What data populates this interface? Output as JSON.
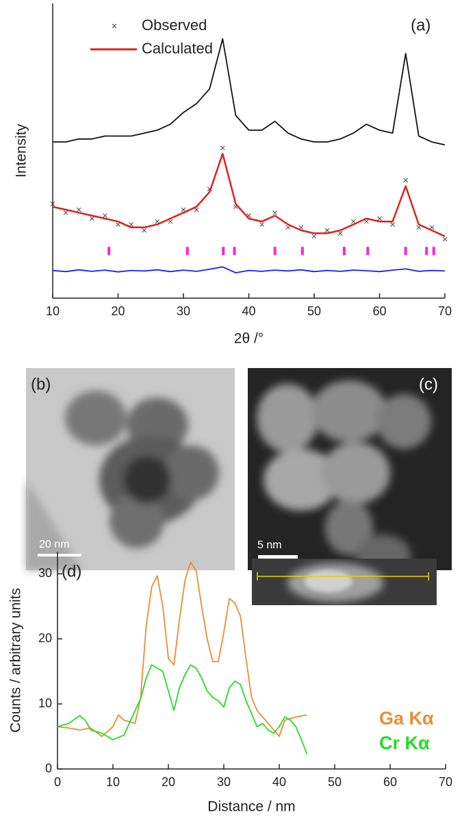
{
  "chart_data": [
    {
      "type": "line",
      "label": "(a)",
      "ylabel": "Intensity",
      "xlabel": "2θ /°",
      "xlim": [
        10,
        70
      ],
      "xticks": [
        10,
        20,
        30,
        40,
        50,
        60,
        70
      ],
      "ylim": [
        0,
        100
      ],
      "legend": {
        "position": "upper left",
        "style": "symbol"
      },
      "x": [
        10,
        12,
        14,
        16,
        18,
        20,
        22,
        24,
        26,
        28,
        30,
        32,
        34,
        36,
        38,
        40,
        42,
        44,
        46,
        48,
        50,
        52,
        54,
        56,
        58,
        60,
        62,
        64,
        66,
        68,
        70
      ],
      "series": [
        {
          "style": "line",
          "color": "#111111",
          "values": [
            53,
            53,
            54,
            54,
            55,
            55,
            55,
            56,
            57,
            59,
            63,
            66,
            71,
            88,
            62,
            57,
            57,
            60,
            56,
            54,
            53,
            53,
            54,
            56,
            59,
            57,
            56,
            83,
            55,
            53,
            52
          ]
        },
        {
          "name": "Observed",
          "style": "scatter",
          "color": "#444444",
          "values": [
            32,
            29,
            30,
            27,
            28,
            25,
            25,
            23,
            26,
            26,
            30,
            30,
            37,
            51,
            31,
            28,
            25,
            29,
            24,
            24,
            21,
            23,
            22,
            26,
            26,
            27,
            25,
            40,
            24,
            24,
            20
          ]
        },
        {
          "name": "Calculated",
          "style": "line",
          "color": "#e0201b",
          "values": [
            31,
            30,
            29,
            28,
            27,
            26,
            24,
            24,
            25,
            27,
            29,
            31,
            36,
            49,
            32,
            27,
            26,
            28,
            25,
            23,
            22,
            22,
            23,
            25,
            27,
            26,
            26,
            38,
            25,
            23,
            21
          ]
        },
        {
          "style": "line",
          "color": "#1a1aff",
          "values": [
            9.4,
            9.0,
            9.6,
            9.1,
            9.5,
            8.9,
            9.4,
            9.2,
            9.6,
            9.0,
            9.5,
            9.1,
            9.8,
            10.6,
            8.6,
            9.4,
            9.1,
            9.5,
            9.2,
            9.6,
            9.0,
            9.4,
            9.1,
            9.5,
            9.3,
            9.0,
            9.5,
            9.9,
            9.1,
            9.4,
            9.2
          ]
        },
        {
          "style": "ticks",
          "color": "#ff22dd",
          "x": [
            18.6,
            30.6,
            36.1,
            37.8,
            44.0,
            48.2,
            54.6,
            58.2,
            64.0,
            67.2,
            68.3
          ],
          "values": [
            16,
            16,
            16,
            16,
            16,
            16,
            16,
            16,
            16,
            16,
            16
          ]
        }
      ]
    },
    {
      "type": "line",
      "label": "(d)",
      "ylabel": "Counts / arbitrary units",
      "xlabel": "Distance / nm",
      "xlim": [
        0,
        70
      ],
      "xticks": [
        0,
        10,
        20,
        30,
        40,
        50,
        60,
        70
      ],
      "ylim": [
        0,
        33.4
      ],
      "yticks": [
        0,
        10,
        20,
        30
      ],
      "legend": {
        "position": "lower right",
        "style": "colored-text"
      },
      "series": [
        {
          "name": "Ga Kα",
          "style": "line",
          "color": "#f08a30",
          "x": [
            0,
            2,
            4,
            6,
            8,
            10,
            11,
            12,
            14,
            15,
            16,
            17,
            18,
            19,
            20,
            21,
            22,
            23,
            24,
            25,
            26,
            27,
            28,
            29,
            30,
            31,
            32,
            33,
            34,
            35,
            36,
            38,
            40,
            41,
            43,
            45
          ],
          "values": [
            6.5,
            6.3,
            6,
            6.3,
            5,
            6.5,
            8.3,
            7.5,
            7,
            11,
            22,
            28,
            29.7,
            25,
            17,
            16,
            23,
            29,
            31.8,
            30.5,
            25,
            20,
            16.5,
            16.5,
            21,
            26.2,
            25.5,
            23.5,
            17,
            11,
            9,
            7,
            5,
            7.5,
            8,
            8.3
          ]
        },
        {
          "name": "Cr Kα",
          "style": "line",
          "color": "#22dd22",
          "x": [
            0,
            2,
            4,
            5,
            6,
            8,
            10,
            12,
            14,
            15,
            16,
            17,
            18,
            19,
            20,
            21,
            22,
            23,
            24,
            25,
            26,
            27,
            28,
            29,
            30,
            31,
            32,
            33,
            34,
            35,
            36,
            37,
            38,
            39,
            40,
            41,
            42,
            43,
            44,
            45
          ],
          "values": [
            6.5,
            7,
            8.2,
            7.5,
            6,
            5.5,
            4.5,
            5.2,
            9,
            10.8,
            14,
            16,
            15.5,
            15,
            12,
            9,
            12.5,
            14.5,
            16,
            15.5,
            14,
            12,
            11,
            10.5,
            9.5,
            12.5,
            13.5,
            13,
            10.5,
            8.5,
            6.5,
            7,
            6,
            5.5,
            6.5,
            8,
            7.5,
            6.5,
            4.5,
            2.3
          ]
        }
      ]
    }
  ],
  "images": [
    {
      "label": "(b)",
      "scale_bar": "20 nm"
    },
    {
      "label": "(c)",
      "scale_bar": "5 nm"
    }
  ]
}
